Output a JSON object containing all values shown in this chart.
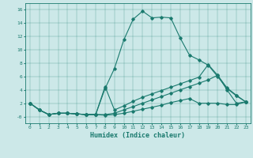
{
  "xlabel": "Humidex (Indice chaleur)",
  "xlim": [
    -0.5,
    23.5
  ],
  "ylim": [
    -1.0,
    17.0
  ],
  "yticks": [
    0,
    2,
    4,
    6,
    8,
    10,
    12,
    14,
    16
  ],
  "ytick_labels": [
    "-0",
    "2",
    "4",
    "6",
    "8",
    "10",
    "12",
    "14",
    "16"
  ],
  "xticks": [
    0,
    1,
    2,
    3,
    4,
    5,
    6,
    7,
    8,
    9,
    10,
    11,
    12,
    13,
    14,
    15,
    16,
    17,
    18,
    19,
    20,
    21,
    22,
    23
  ],
  "color": "#1a7a6e",
  "bg_color": "#cce8e8",
  "series": [
    [
      2.0,
      1.0,
      0.3,
      0.5,
      0.5,
      0.4,
      0.3,
      0.3,
      4.2,
      7.2,
      11.5,
      14.6,
      15.8,
      14.8,
      14.9,
      14.8,
      11.8,
      9.2,
      8.5,
      7.7,
      6.0,
      4.2,
      3.1,
      2.2
    ],
    [
      2.0,
      1.0,
      0.3,
      0.5,
      0.5,
      0.4,
      0.3,
      0.3,
      4.5,
      1.0,
      1.6,
      2.3,
      2.9,
      3.4,
      3.9,
      4.4,
      4.9,
      5.4,
      5.9,
      7.8,
      6.2,
      4.3,
      3.2,
      2.2
    ],
    [
      2.0,
      1.0,
      0.3,
      0.5,
      0.5,
      0.4,
      0.3,
      0.3,
      0.3,
      0.5,
      1.0,
      1.5,
      2.0,
      2.5,
      3.0,
      3.5,
      4.0,
      4.5,
      5.0,
      5.5,
      6.2,
      4.0,
      2.0,
      2.2
    ],
    [
      2.0,
      1.0,
      0.3,
      0.5,
      0.5,
      0.4,
      0.3,
      0.3,
      0.2,
      0.3,
      0.5,
      0.8,
      1.1,
      1.4,
      1.7,
      2.1,
      2.4,
      2.7,
      2.0,
      2.0,
      2.0,
      1.8,
      1.8,
      2.2
    ]
  ]
}
